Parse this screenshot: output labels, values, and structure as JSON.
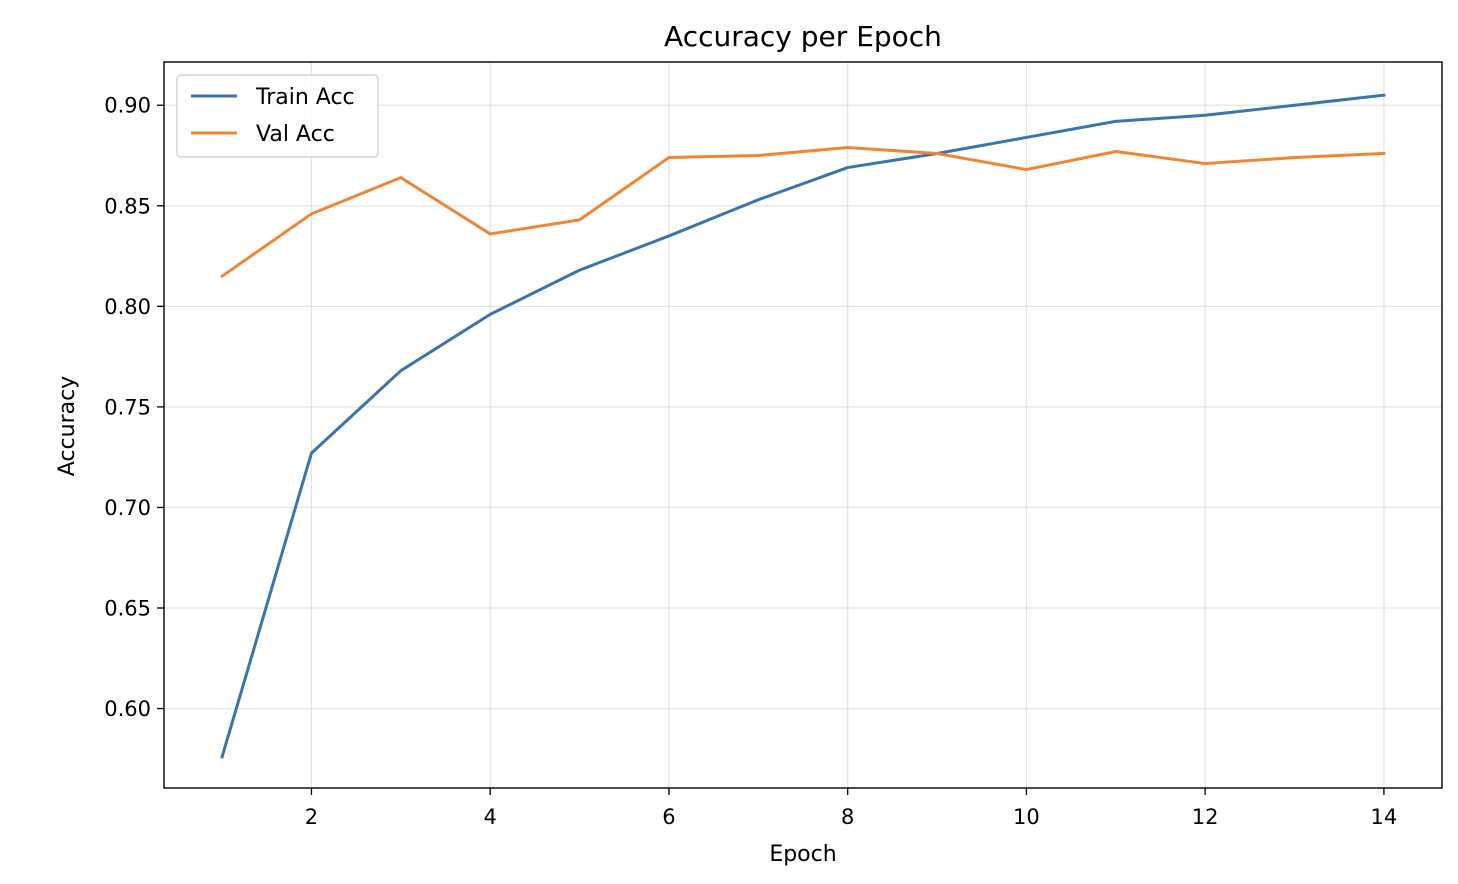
{
  "chart_data": {
    "type": "line",
    "title": "Accuracy per Epoch",
    "xlabel": "Epoch",
    "ylabel": "Accuracy",
    "xlim": [
      0.35,
      14.65
    ],
    "ylim": [
      0.5605,
      0.9215
    ],
    "xticks": [
      2,
      4,
      6,
      8,
      10,
      12,
      14
    ],
    "yticks": [
      0.6,
      0.65,
      0.7,
      0.75,
      0.8,
      0.85,
      0.9
    ],
    "ytick_labels": [
      "0.60",
      "0.65",
      "0.70",
      "0.75",
      "0.80",
      "0.85",
      "0.90"
    ],
    "grid": true,
    "legend_position": "top-left",
    "x": [
      1,
      2,
      3,
      4,
      5,
      6,
      7,
      8,
      9,
      10,
      11,
      12,
      13,
      14
    ],
    "series": [
      {
        "name": "Train Acc",
        "color": "#3a75ae",
        "values": [
          0.576,
          0.727,
          0.768,
          0.796,
          0.818,
          0.835,
          0.853,
          0.869,
          0.876,
          0.884,
          0.892,
          0.895,
          0.9,
          0.905
        ]
      },
      {
        "name": "Val Acc",
        "color": "#ef8636",
        "values": [
          0.815,
          0.846,
          0.864,
          0.836,
          0.843,
          0.874,
          0.875,
          0.879,
          0.876,
          0.868,
          0.877,
          0.871,
          0.874,
          0.876
        ]
      }
    ]
  }
}
